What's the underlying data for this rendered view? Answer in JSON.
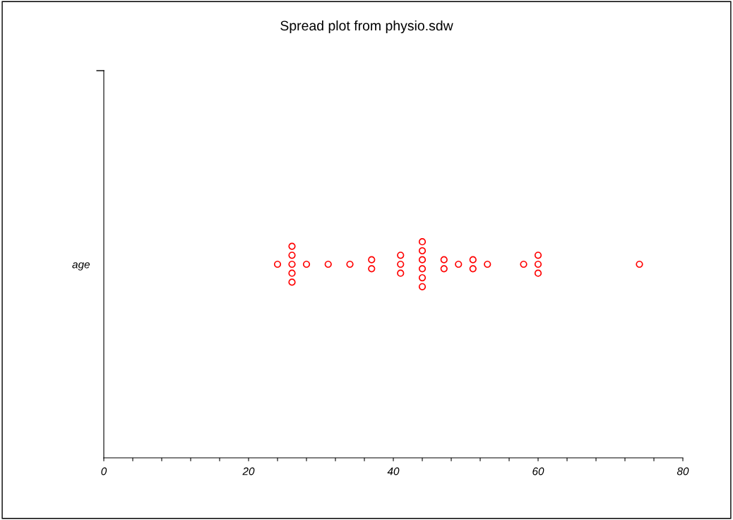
{
  "chart_data": {
    "type": "scatter",
    "orientation": "horizontal",
    "title": "Spread plot from physio.sdw",
    "categories": [
      "age"
    ],
    "series": [
      {
        "color": "#ff0000",
        "marker": "circle",
        "x": [
          "age",
          "age",
          "age",
          "age",
          "age",
          "age",
          "age",
          "age",
          "age",
          "age",
          "age",
          "age",
          "age",
          "age",
          "age",
          "age",
          "age",
          "age",
          "age",
          "age",
          "age",
          "age",
          "age",
          "age",
          "age",
          "age",
          "age",
          "age",
          "age",
          "age",
          "age"
        ],
        "values": [
          24,
          26,
          26,
          26,
          26,
          26,
          28,
          31,
          34,
          37,
          37,
          41,
          41,
          41,
          44,
          44,
          44,
          44,
          44,
          44,
          47,
          47,
          49,
          51,
          51,
          53,
          58,
          60,
          60,
          60,
          74
        ]
      }
    ],
    "xlim": [
      0,
      80
    ],
    "xticks": [
      0,
      {
        "value": 4,
        "label": null
      },
      {
        "value": 8,
        "label": null
      },
      {
        "value": 12,
        "label": null
      },
      {
        "value": 16,
        "label": null
      },
      20,
      {
        "value": 24,
        "label": null
      },
      {
        "value": 28,
        "label": null
      },
      {
        "value": 32,
        "label": null
      },
      {
        "value": 36,
        "label": null
      },
      40,
      {
        "value": 44,
        "label": null
      },
      {
        "value": 48,
        "label": null
      },
      {
        "value": 52,
        "label": null
      },
      {
        "value": 56,
        "label": null
      },
      60,
      {
        "value": 64,
        "label": null
      },
      {
        "value": 68,
        "label": null
      },
      {
        "value": 72,
        "label": null
      },
      {
        "value": 76,
        "label": null
      },
      80
    ],
    "grid": false,
    "legend": false
  }
}
